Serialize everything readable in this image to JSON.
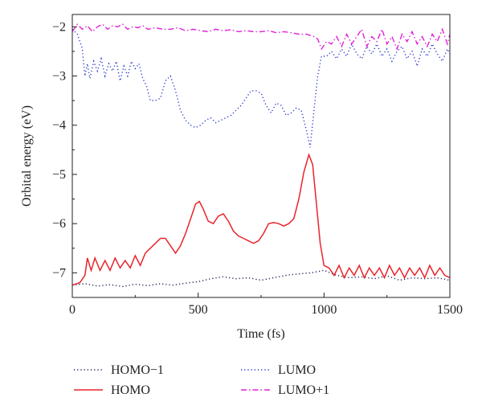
{
  "chart_data": {
    "type": "line",
    "title": "",
    "xlabel": "Time (fs)",
    "ylabel": "Orbital energy (eV)",
    "xlim": [
      0,
      1500
    ],
    "ylim": [
      -7.5,
      -1.75
    ],
    "xticks": [
      0,
      500,
      1000,
      1500
    ],
    "xtick_labels": [
      "0",
      "500",
      "1000",
      "1500"
    ],
    "yticks": [
      -7,
      -6,
      -5,
      -4,
      -3,
      -2
    ],
    "ytick_labels": [
      "−7",
      "−6",
      "−5",
      "−4",
      "−3",
      "−2"
    ],
    "grid": false,
    "legend_position": "bottom-outside",
    "series": [
      {
        "name": "HOMO−1",
        "color": "#1a1a5a",
        "style": "dotted",
        "x": [
          0,
          50,
          100,
          150,
          200,
          250,
          300,
          350,
          400,
          450,
          500,
          550,
          600,
          650,
          700,
          750,
          800,
          850,
          900,
          950,
          1000,
          1050,
          1100,
          1150,
          1200,
          1250,
          1300,
          1350,
          1400,
          1450,
          1500
        ],
        "values": [
          -7.25,
          -7.22,
          -7.27,
          -7.24,
          -7.28,
          -7.23,
          -7.26,
          -7.22,
          -7.25,
          -7.21,
          -7.18,
          -7.12,
          -7.08,
          -7.12,
          -7.1,
          -7.15,
          -7.1,
          -7.05,
          -7.02,
          -7.0,
          -6.95,
          -7.05,
          -7.1,
          -7.08,
          -7.12,
          -7.06,
          -7.15,
          -7.1,
          -7.12,
          -7.1,
          -7.15
        ]
      },
      {
        "name": "HOMO",
        "color": "#e8242b",
        "style": "solid",
        "x": [
          0,
          30,
          50,
          60,
          75,
          90,
          110,
          130,
          150,
          170,
          190,
          210,
          230,
          250,
          270,
          290,
          310,
          330,
          350,
          370,
          390,
          410,
          430,
          450,
          470,
          490,
          505,
          520,
          540,
          560,
          580,
          600,
          620,
          640,
          660,
          680,
          700,
          720,
          740,
          760,
          780,
          800,
          820,
          840,
          860,
          880,
          900,
          920,
          940,
          955,
          970,
          985,
          1000,
          1020,
          1040,
          1060,
          1080,
          1100,
          1120,
          1140,
          1160,
          1180,
          1200,
          1220,
          1240,
          1260,
          1280,
          1300,
          1320,
          1340,
          1360,
          1380,
          1400,
          1420,
          1440,
          1460,
          1480,
          1500
        ],
        "values": [
          -7.25,
          -7.2,
          -7.05,
          -6.7,
          -6.95,
          -6.7,
          -6.95,
          -6.75,
          -6.95,
          -6.7,
          -6.9,
          -6.75,
          -6.9,
          -6.65,
          -6.85,
          -6.6,
          -6.5,
          -6.4,
          -6.3,
          -6.3,
          -6.45,
          -6.6,
          -6.45,
          -6.2,
          -5.9,
          -5.6,
          -5.55,
          -5.7,
          -5.95,
          -6.0,
          -5.85,
          -5.8,
          -5.95,
          -6.15,
          -6.25,
          -6.3,
          -6.35,
          -6.4,
          -6.35,
          -6.2,
          -6.0,
          -5.98,
          -6.0,
          -6.05,
          -6.0,
          -5.9,
          -5.5,
          -4.95,
          -4.6,
          -4.8,
          -5.6,
          -6.4,
          -6.85,
          -6.9,
          -7.05,
          -6.85,
          -7.1,
          -6.9,
          -7.05,
          -6.85,
          -7.1,
          -6.9,
          -7.05,
          -6.9,
          -7.1,
          -6.85,
          -7.05,
          -6.9,
          -7.1,
          -6.9,
          -7.05,
          -6.9,
          -7.1,
          -6.85,
          -7.05,
          -6.9,
          -7.05,
          -7.1
        ]
      },
      {
        "name": "LUMO",
        "color": "#2233cc",
        "style": "dotted",
        "x": [
          0,
          20,
          40,
          50,
          60,
          70,
          85,
          100,
          115,
          130,
          145,
          160,
          175,
          190,
          205,
          220,
          235,
          250,
          265,
          280,
          295,
          310,
          330,
          350,
          370,
          390,
          410,
          430,
          450,
          470,
          490,
          510,
          530,
          550,
          570,
          590,
          610,
          630,
          650,
          670,
          690,
          710,
          730,
          750,
          770,
          790,
          810,
          830,
          850,
          870,
          890,
          910,
          930,
          945,
          960,
          975,
          990,
          1010,
          1030,
          1050,
          1070,
          1090,
          1110,
          1130,
          1150,
          1170,
          1190,
          1210,
          1230,
          1250,
          1270,
          1290,
          1310,
          1330,
          1350,
          1370,
          1390,
          1410,
          1430,
          1450,
          1470,
          1490,
          1500
        ],
        "values": [
          -2.05,
          -2.15,
          -2.45,
          -3.0,
          -2.75,
          -3.05,
          -2.7,
          -2.9,
          -2.65,
          -3.0,
          -2.75,
          -2.9,
          -2.7,
          -3.1,
          -2.8,
          -3.0,
          -2.7,
          -2.85,
          -2.75,
          -3.05,
          -3.2,
          -3.5,
          -3.5,
          -3.45,
          -3.1,
          -3.0,
          -3.3,
          -3.7,
          -3.9,
          -4.0,
          -4.05,
          -4.0,
          -3.9,
          -3.85,
          -3.95,
          -3.9,
          -3.85,
          -3.8,
          -3.7,
          -3.6,
          -3.45,
          -3.3,
          -3.3,
          -3.35,
          -3.6,
          -3.75,
          -3.55,
          -3.6,
          -3.8,
          -3.75,
          -3.65,
          -3.7,
          -4.1,
          -4.45,
          -3.7,
          -3.0,
          -2.6,
          -2.6,
          -2.5,
          -2.65,
          -2.45,
          -2.6,
          -2.35,
          -2.55,
          -2.65,
          -2.4,
          -2.55,
          -2.35,
          -2.6,
          -2.45,
          -2.7,
          -2.5,
          -2.4,
          -2.65,
          -2.5,
          -2.8,
          -2.45,
          -2.6,
          -2.35,
          -2.55,
          -2.7,
          -2.45,
          -2.55
        ]
      },
      {
        "name": "LUMO+1",
        "color": "#e020d8",
        "style": "dashdot",
        "x": [
          0,
          20,
          40,
          60,
          80,
          100,
          120,
          140,
          160,
          180,
          200,
          220,
          240,
          260,
          280,
          300,
          330,
          360,
          390,
          420,
          450,
          480,
          510,
          540,
          570,
          600,
          630,
          660,
          690,
          720,
          750,
          780,
          810,
          840,
          870,
          900,
          930,
          960,
          975,
          990,
          1010,
          1030,
          1050,
          1070,
          1090,
          1110,
          1130,
          1150,
          1170,
          1190,
          1210,
          1230,
          1250,
          1270,
          1290,
          1310,
          1330,
          1350,
          1370,
          1390,
          1410,
          1430,
          1450,
          1470,
          1490,
          1500
        ],
        "values": [
          -2.1,
          -1.95,
          -2.05,
          -1.98,
          -2.1,
          -2.0,
          -1.95,
          -2.05,
          -1.98,
          -2.0,
          -1.95,
          -2.05,
          -2.0,
          -2.02,
          -1.98,
          -2.05,
          -2.02,
          -2.05,
          -2.05,
          -2.02,
          -2.08,
          -2.05,
          -2.08,
          -2.1,
          -2.05,
          -2.08,
          -2.06,
          -2.1,
          -2.08,
          -2.1,
          -2.1,
          -2.08,
          -2.12,
          -2.1,
          -2.12,
          -2.15,
          -2.15,
          -2.2,
          -2.25,
          -2.45,
          -2.3,
          -2.35,
          -2.2,
          -2.4,
          -2.15,
          -2.35,
          -2.2,
          -2.05,
          -2.4,
          -2.2,
          -2.3,
          -2.05,
          -2.35,
          -2.2,
          -2.45,
          -2.15,
          -2.3,
          -2.1,
          -2.35,
          -2.2,
          -2.4,
          -2.15,
          -2.3,
          -2.05,
          -2.35,
          -2.15
        ]
      }
    ],
    "legend": [
      {
        "label": "HOMO−1",
        "series": 0
      },
      {
        "label": "LUMO",
        "series": 2
      },
      {
        "label": "HOMO",
        "series": 1
      },
      {
        "label": "LUMO+1",
        "series": 3
      }
    ]
  }
}
